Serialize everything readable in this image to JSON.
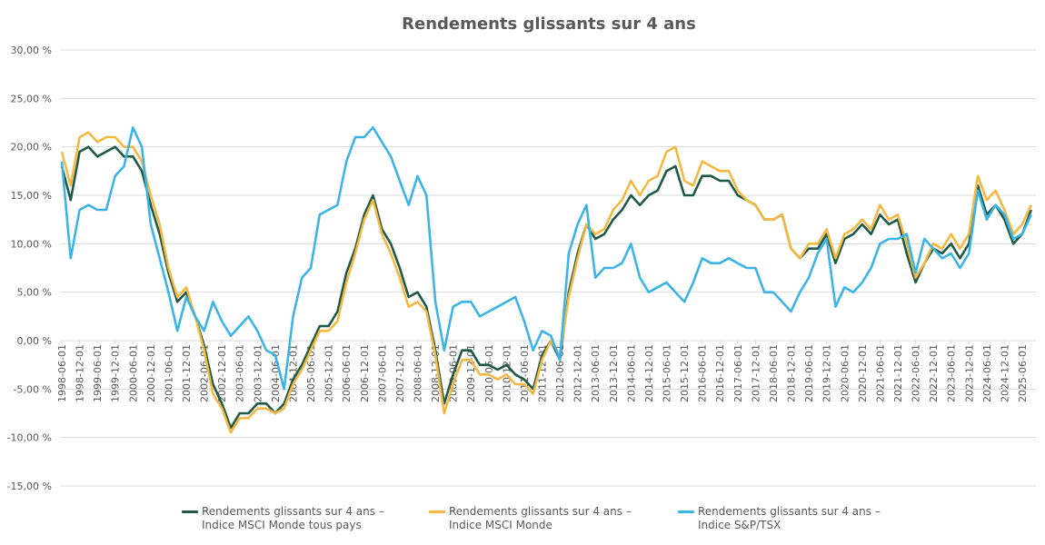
{
  "chart_data": {
    "type": "line",
    "title": "Rendements glissants sur 4 ans",
    "xlabel": "",
    "ylabel": "",
    "ylim": [
      -15,
      30
    ],
    "y_ticks": [
      "30,00 %",
      "25,00 %",
      "20,00 %",
      "15,00 %",
      "10,00 %",
      "5,00 %",
      "0,00 %",
      "-5,00 %",
      "-10,00 %",
      "-15,00 %"
    ],
    "y_tick_values": [
      30,
      25,
      20,
      15,
      10,
      5,
      0,
      -5,
      -10,
      -15
    ],
    "x_ticks": [
      "1998-06-01",
      "1998-12-01",
      "1999-06-01",
      "1999-12-01",
      "2000-06-01",
      "2000-12-01",
      "2001-06-01",
      "2001-12-01",
      "2002-06-01",
      "2002-12-01",
      "2003-06-01",
      "2003-12-01",
      "2004-06-01",
      "2004-12-01",
      "2005-06-01",
      "2005-12-01",
      "2006-06-01",
      "2006-12-01",
      "2007-06-01",
      "2007-12-01",
      "2008-06-01",
      "2008-12-01",
      "2009-06-01",
      "2009-12-01",
      "2010-06-01",
      "2010-12-01",
      "2011-06-01",
      "2011-12-01",
      "2012-06-01",
      "2012-12-01",
      "2013-06-01",
      "2013-12-01",
      "2014-06-01",
      "2014-12-01",
      "2015-06-01",
      "2015-12-01",
      "2016-06-01",
      "2016-12-01",
      "2017-06-01",
      "2017-12-01",
      "2018-06-01",
      "2018-12-01",
      "2019-06-01",
      "2019-12-01",
      "2020-06-01",
      "2020-12-01",
      "2021-06-01",
      "2021-12-01",
      "2022-06-01",
      "2022-12-01",
      "2023-06-01",
      "2023-12-01",
      "2024-06-01",
      "2024-12-01",
      "2025-06-01"
    ],
    "grid": true,
    "legend_position": "bottom",
    "x": [
      "1998-06",
      "1998-09",
      "1998-12",
      "1999-03",
      "1999-06",
      "1999-09",
      "1999-12",
      "2000-03",
      "2000-06",
      "2000-09",
      "2000-12",
      "2001-03",
      "2001-06",
      "2001-09",
      "2001-12",
      "2002-03",
      "2002-06",
      "2002-09",
      "2002-12",
      "2003-03",
      "2003-06",
      "2003-09",
      "2003-12",
      "2004-03",
      "2004-06",
      "2004-09",
      "2004-12",
      "2005-03",
      "2005-06",
      "2005-09",
      "2005-12",
      "2006-03",
      "2006-06",
      "2006-09",
      "2006-12",
      "2007-03",
      "2007-06",
      "2007-09",
      "2007-12",
      "2008-03",
      "2008-06",
      "2008-09",
      "2008-12",
      "2009-03",
      "2009-06",
      "2009-09",
      "2009-12",
      "2010-03",
      "2010-06",
      "2010-09",
      "2010-12",
      "2011-03",
      "2011-06",
      "2011-09",
      "2011-12",
      "2012-03",
      "2012-06",
      "2012-09",
      "2012-12",
      "2013-03",
      "2013-06",
      "2013-09",
      "2013-12",
      "2014-03",
      "2014-06",
      "2014-09",
      "2014-12",
      "2015-03",
      "2015-06",
      "2015-09",
      "2015-12",
      "2016-03",
      "2016-06",
      "2016-09",
      "2016-12",
      "2017-03",
      "2017-06",
      "2017-09",
      "2017-12",
      "2018-03",
      "2018-06",
      "2018-09",
      "2018-12",
      "2019-03",
      "2019-06",
      "2019-09",
      "2019-12",
      "2020-03",
      "2020-06",
      "2020-09",
      "2020-12",
      "2021-03",
      "2021-06",
      "2021-09",
      "2021-12",
      "2022-03",
      "2022-06",
      "2022-09",
      "2022-12",
      "2023-03",
      "2023-06",
      "2023-09",
      "2023-12",
      "2024-03",
      "2024-06",
      "2024-09",
      "2024-12",
      "2025-03",
      "2025-06",
      "2025-09"
    ],
    "series": [
      {
        "name": "Rendements glissants sur 4 ans – Indice MSCI Monde tous pays",
        "line1": "Rendements glissants sur 4 ans –",
        "line2": "Indice MSCI Monde tous pays",
        "color": "#1e5a46",
        "values": [
          18,
          14.5,
          19.5,
          20,
          19,
          19.5,
          20,
          19,
          19,
          17.5,
          14,
          11,
          7,
          4,
          5,
          2.5,
          -0.5,
          -4.5,
          -6.5,
          -9,
          -7.5,
          -7.5,
          -6.5,
          -6.5,
          -7.5,
          -6.5,
          -4,
          -2.5,
          -0.5,
          1.5,
          1.5,
          3,
          7,
          9.5,
          13,
          15,
          11.5,
          10,
          7.5,
          4.5,
          5,
          3.5,
          -1,
          -6.5,
          -3.5,
          -1,
          -1,
          -2.5,
          -2.5,
          -3,
          -2.5,
          -3.5,
          -4,
          -5,
          -1.5,
          0,
          -2,
          5,
          9,
          12,
          10.5,
          11,
          12.5,
          13.5,
          15,
          14,
          15,
          15.5,
          17.5,
          18,
          15,
          15,
          17,
          17,
          16.5,
          16.5,
          15,
          14.5,
          14,
          12.5,
          12.5,
          13,
          9.5,
          8.5,
          9.5,
          9.5,
          11,
          8,
          10.5,
          11,
          12,
          11,
          13,
          12,
          12.5,
          9,
          6,
          8,
          9.5,
          9,
          10,
          8.5,
          10,
          16,
          13,
          14,
          12.5,
          10,
          11,
          13.5
        ]
      },
      {
        "name": "Rendements glissants sur 4 ans – Indice MSCI Monde",
        "line1": "Rendements glissants sur 4 ans –",
        "line2": "Indice MSCI Monde",
        "color": "#f4b942",
        "values": [
          19.5,
          16,
          21,
          21.5,
          20.5,
          21,
          21,
          20,
          20,
          18.5,
          15,
          12,
          7.5,
          4.5,
          5.5,
          2.5,
          -1,
          -5.5,
          -7,
          -9.5,
          -8,
          -8,
          -7,
          -7,
          -7.5,
          -7,
          -4.5,
          -3,
          -1,
          1,
          1,
          2,
          6,
          9,
          12.5,
          14.5,
          11,
          9,
          6.5,
          3.5,
          4,
          3,
          -1.5,
          -7.5,
          -4.5,
          -2,
          -2,
          -3.5,
          -3.5,
          -4,
          -3.5,
          -4.5,
          -4.5,
          -5.5,
          -2,
          0,
          -1.5,
          4.5,
          8.5,
          12,
          11,
          11.5,
          13.5,
          14.5,
          16.5,
          15,
          16.5,
          17,
          19.5,
          20,
          16.5,
          16,
          18.5,
          18,
          17.5,
          17.5,
          15.5,
          14.5,
          14,
          12.5,
          12.5,
          13,
          9.5,
          8.5,
          10,
          10,
          11.5,
          8.5,
          11,
          11.5,
          12.5,
          11.5,
          14,
          12.5,
          13,
          10,
          6.5,
          8,
          10,
          9.5,
          11,
          9.5,
          11,
          17,
          14.5,
          15.5,
          13.5,
          11,
          12,
          14
        ]
      },
      {
        "name": "Rendements glissants sur 4 ans – Indice S&P/TSX",
        "line1": "Rendements glissants sur 4 ans –",
        "line2": "Indice S&P/TSX",
        "color": "#3cb4e5",
        "values": [
          18.5,
          8.5,
          13.5,
          14,
          13.5,
          13.5,
          17,
          18,
          22,
          20,
          12,
          8.5,
          5,
          1,
          4.5,
          2.5,
          1,
          4,
          2,
          0.5,
          1.5,
          2.5,
          1,
          -1,
          -1.5,
          -5,
          2.5,
          6.5,
          7.5,
          13,
          13.5,
          14,
          18.5,
          21,
          21,
          22,
          20.5,
          19,
          16.5,
          14,
          17,
          15,
          4,
          -1,
          3.5,
          4,
          4,
          2.5,
          3,
          3.5,
          4,
          4.5,
          2,
          -1,
          1,
          0.5,
          -2,
          9,
          12,
          14,
          6.5,
          7.5,
          7.5,
          8,
          10,
          6.5,
          5,
          5.5,
          6,
          5,
          4,
          6,
          8.5,
          8,
          8,
          8.5,
          8,
          7.5,
          7.5,
          5,
          5,
          4,
          3,
          5,
          6.5,
          9,
          10.5,
          3.5,
          5.5,
          5,
          6,
          7.5,
          10,
          10.5,
          10.5,
          11,
          7,
          10.5,
          9.5,
          8.5,
          9,
          7.5,
          9,
          15.5,
          12.5,
          14,
          13,
          10.5,
          11,
          13
        ]
      }
    ]
  }
}
